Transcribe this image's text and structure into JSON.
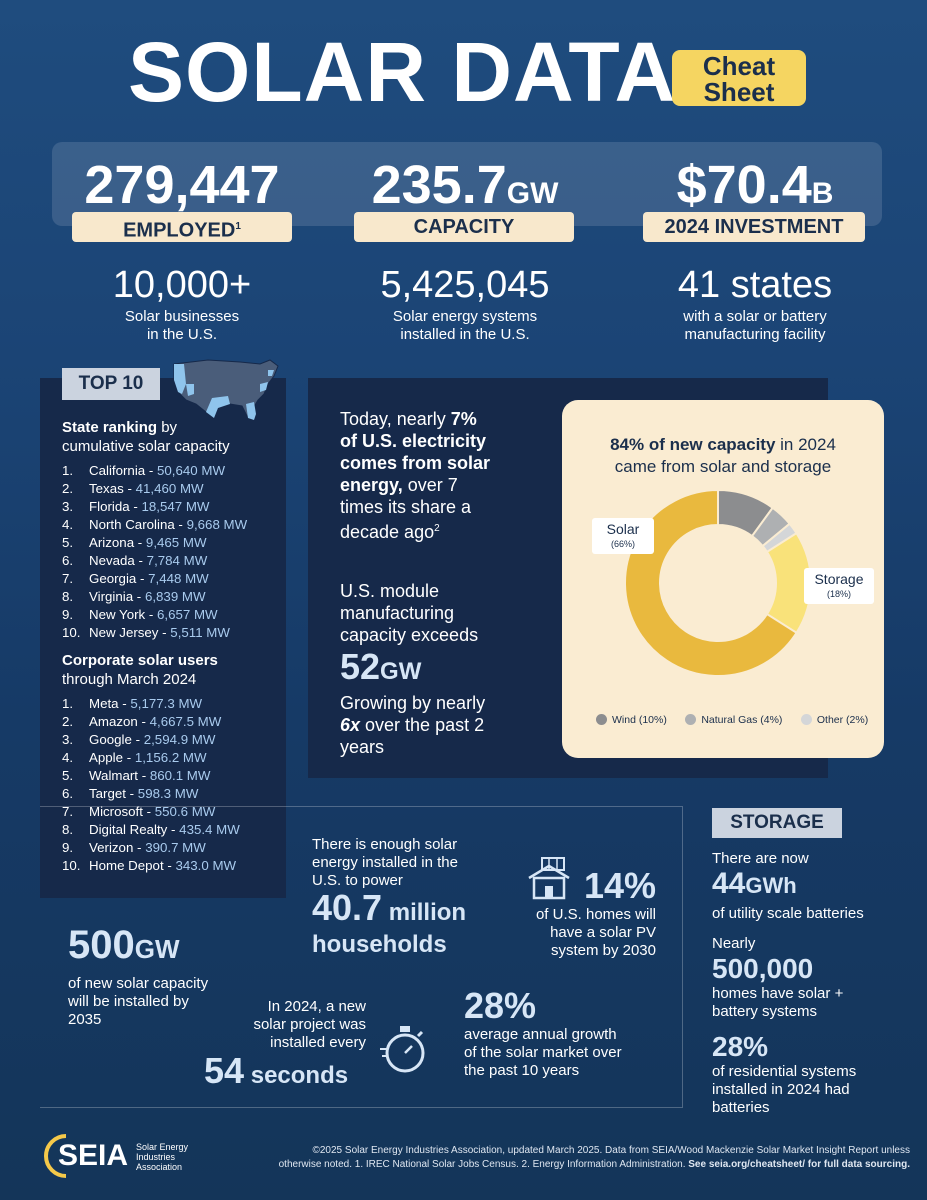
{
  "header": {
    "title": "SOLAR DATA",
    "badge_line1": "Cheat",
    "badge_line2": "Sheet"
  },
  "stats": [
    {
      "value": "279,447",
      "unit": "",
      "label": "EMPLOYED",
      "label_sup": "1"
    },
    {
      "value": "235.7",
      "unit": "GW",
      "label": "CAPACITY",
      "label_sup": ""
    },
    {
      "value": "$70.4",
      "unit": "B",
      "label": "2024 INVESTMENT",
      "label_sup": ""
    }
  ],
  "substats": [
    {
      "value": "10,000+",
      "line1": "Solar businesses",
      "line2": "in the U.S."
    },
    {
      "value": "5,425,045",
      "line1": "Solar energy systems",
      "line2": "installed in the U.S."
    },
    {
      "value": "41 states",
      "line1": "with a solar or battery",
      "line2": "manufacturing facility"
    }
  ],
  "top10": {
    "tag": "TOP 10",
    "state_heading_bold": "State ranking",
    "state_heading_rest": " by",
    "state_heading_line2": "cumulative solar capacity",
    "states": [
      {
        "num": "1.",
        "name": "California",
        "value": "50,640 MW"
      },
      {
        "num": "2.",
        "name": "Texas",
        "value": "41,460 MW"
      },
      {
        "num": "3.",
        "name": "Florida",
        "value": "18,547 MW"
      },
      {
        "num": "4.",
        "name": "North Carolina",
        "value": "9,668 MW"
      },
      {
        "num": "5.",
        "name": "Arizona",
        "value": "9,465 MW"
      },
      {
        "num": "6.",
        "name": "Nevada",
        "value": "7,784 MW"
      },
      {
        "num": "7.",
        "name": "Georgia",
        "value": "7,448 MW"
      },
      {
        "num": "8.",
        "name": "Virginia",
        "value": "6,839 MW"
      },
      {
        "num": "9.",
        "name": "New York",
        "value": "6,657 MW"
      },
      {
        "num": "10.",
        "name": "New Jersey",
        "value": "5,511 MW"
      }
    ],
    "corp_heading_bold": "Corporate solar users",
    "corp_heading_line2": "through March 2024",
    "corporates": [
      {
        "num": "1.",
        "name": "Meta",
        "value": "5,177.3 MW"
      },
      {
        "num": "2.",
        "name": "Amazon",
        "value": "4,667.5 MW"
      },
      {
        "num": "3.",
        "name": "Google",
        "value": "2,594.9 MW"
      },
      {
        "num": "4.",
        "name": "Apple",
        "value": "1,156.2 MW"
      },
      {
        "num": "5.",
        "name": "Walmart",
        "value": "860.1 MW"
      },
      {
        "num": "6.",
        "name": "Target",
        "value": "598.3 MW"
      },
      {
        "num": "7.",
        "name": "Microsoft",
        "value": "550.6 MW"
      },
      {
        "num": "8.",
        "name": "Digital Realty",
        "value": "435.4 MW"
      },
      {
        "num": "9.",
        "name": "Verizon",
        "value": "390.7 MW"
      },
      {
        "num": "10.",
        "name": "Home Depot",
        "value": "343.0 MW"
      }
    ]
  },
  "electricity": {
    "l1a": "Today, nearly ",
    "l1b": "7%",
    "l2": "of U.S. electricity",
    "l3": "comes from solar",
    "l4a": "energy,",
    "l4b": " over 7",
    "l5": "times its share a",
    "l6": "decade ago",
    "sup": "2"
  },
  "module": {
    "l1": "U.S. module",
    "l2": "manufacturing",
    "l3": "capacity exceeds",
    "value": "52",
    "unit": "GW",
    "g1": "Growing by nearly",
    "g2a": "6x",
    "g2b": " over the past 2",
    "g3": "years"
  },
  "donut_card": {
    "title_bold": "84% of new capacity",
    "title_rest": " in 2024",
    "title_line2": "came from solar and storage",
    "solar_label": "Solar",
    "solar_pct": "(66%)",
    "storage_label": "Storage",
    "storage_pct": "(18%)",
    "legend": [
      {
        "text": "Wind (10%)",
        "color": "#8c8d8f"
      },
      {
        "text": "Natural Gas (4%)",
        "color": "#aeb0b2"
      },
      {
        "text": "Other (2%)",
        "color": "#d4d6d8"
      }
    ]
  },
  "chart_data": {
    "type": "pie",
    "title": "84% of new capacity in 2024 came from solar and storage",
    "categories": [
      "Solar",
      "Storage",
      "Wind",
      "Natural Gas",
      "Other"
    ],
    "values": [
      66,
      18,
      10,
      4,
      2
    ],
    "colors": [
      "#e9b93e",
      "#f9e27a",
      "#8c8d8f",
      "#aeb0b2",
      "#d4d6d8"
    ],
    "legend": "bottom"
  },
  "households": {
    "l1": "There is enough solar",
    "l2": "energy installed in the",
    "l3": "U.S. to power",
    "value": "40.7",
    "unit": " million",
    "l5": "households"
  },
  "homes_pv": {
    "value": "14%",
    "l1": "of U.S. homes will",
    "l2": "have a solar PV",
    "l3": "system by 2030"
  },
  "new_capacity": {
    "value": "500",
    "unit": "GW",
    "l1": "of new solar capacity",
    "l2": "will be installed by",
    "l3": "2035"
  },
  "project": {
    "l1": "In 2024, a new",
    "l2": "solar project was",
    "l3": "installed every",
    "value": "54",
    "unit": " seconds"
  },
  "growth": {
    "value": "28%",
    "l1": "average annual growth",
    "l2": "of the solar market over",
    "l3": "the past 10 years"
  },
  "storage": {
    "tag": "STORAGE",
    "s1_pre": "There are now",
    "s1_value": "44",
    "s1_unit": "GWh",
    "s1_post": "of utility scale batteries",
    "s2_pre": "Nearly",
    "s2_value": "500,000",
    "s2_l1": "homes have solar +",
    "s2_l2": "battery systems",
    "s3_value": "28%",
    "s3_l1": "of residential systems",
    "s3_l2": "installed in 2024 had",
    "s3_l3": "batteries"
  },
  "footer": {
    "logo_text": "SEIA",
    "logo_l1": "Solar Energy",
    "logo_l2": "Industries",
    "logo_l3": "Association",
    "line1": "©2025 Solar Energy Industries Association, updated March 2025. Data from SEIA/Wood Mackenzie Solar Market Insight Report unless",
    "line2a": "otherwise noted. 1. IREC National Solar Jobs Census. 2. Energy Information Administration. ",
    "line2b": "See seia.org/cheatsheet/ for full data sourcing."
  },
  "colors": {
    "accent_yellow": "#f5d561",
    "cream": "#f8e8cc",
    "navy_panel": "#16294a",
    "light_blue_value": "#a9cbee"
  }
}
